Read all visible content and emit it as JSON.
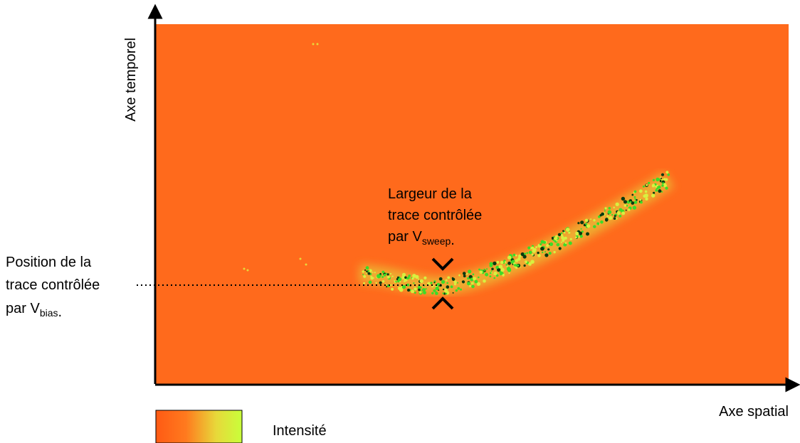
{
  "axes": {
    "y_label": "Axe temporel",
    "x_label": "Axe spatial"
  },
  "legend": {
    "label": "Intensité"
  },
  "width_annotation": {
    "lines": [
      "Largeur de la",
      "trace contrôlée",
      "par V"
    ],
    "subscript": "sweep",
    "suffix": "."
  },
  "position_annotation": {
    "lines": [
      "Position de la",
      "trace contrôlée",
      "par V"
    ],
    "subscript": "bias",
    "suffix": "."
  }
}
